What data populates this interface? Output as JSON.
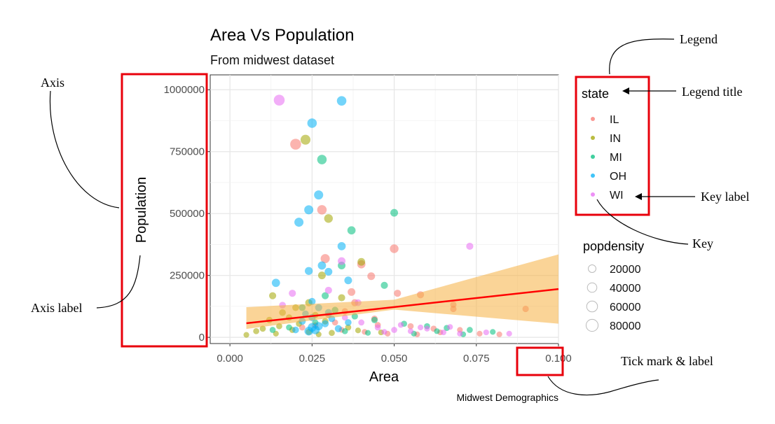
{
  "chart_data": {
    "type": "scatter",
    "title": "Area Vs Population",
    "subtitle": "From midwest dataset",
    "xlabel": "Area",
    "ylabel": "Population",
    "caption": "Midwest Demographics",
    "xlim": [
      -0.006,
      0.1
    ],
    "ylim": [
      -25000,
      1060000
    ],
    "x_ticks": [
      0.0,
      0.025,
      0.05,
      0.075,
      0.1
    ],
    "x_tick_labels": [
      "0.000",
      "0.025",
      "0.050",
      "0.075",
      "0.100"
    ],
    "y_ticks": [
      0,
      250000,
      500000,
      750000,
      1000000
    ],
    "y_tick_labels": [
      "0",
      "250000",
      "500000",
      "750000",
      "1000000"
    ],
    "grid": true,
    "legend_placement": "right",
    "legend_state": {
      "title": "state",
      "entries": [
        {
          "label": "IL",
          "color": "#F8766D"
        },
        {
          "label": "IN",
          "color": "#A3A500"
        },
        {
          "label": "MI",
          "color": "#00BF7D"
        },
        {
          "label": "OH",
          "color": "#00B0F6"
        },
        {
          "label": "WI",
          "color": "#E76BF3"
        }
      ]
    },
    "legend_popdensity": {
      "title": "popdensity",
      "entries": [
        {
          "label": "20000",
          "value": 20000
        },
        {
          "label": "40000",
          "value": 40000
        },
        {
          "label": "60000",
          "value": 60000
        },
        {
          "label": "80000",
          "value": 80000
        }
      ]
    },
    "smooth": {
      "color": "#FF0000",
      "band_color": "#F5B041",
      "line": [
        [
          0.005,
          57000
        ],
        [
          0.1,
          195000
        ]
      ],
      "band_upper": [
        [
          0.005,
          122000
        ],
        [
          0.05,
          152000
        ],
        [
          0.1,
          335000
        ]
      ],
      "band_lower": [
        [
          0.005,
          34000
        ],
        [
          0.05,
          112000
        ],
        [
          0.1,
          55000
        ]
      ]
    },
    "series": [
      {
        "name": "IL",
        "color": "#F8766D",
        "points": [
          {
            "x": 0.02,
            "y": 780000,
            "popdensity": 60000
          },
          {
            "x": 0.028,
            "y": 515000,
            "popdensity": 40000
          },
          {
            "x": 0.029,
            "y": 318000,
            "popdensity": 35000
          },
          {
            "x": 0.05,
            "y": 358000,
            "popdensity": 30000
          },
          {
            "x": 0.04,
            "y": 295000,
            "popdensity": 25000
          },
          {
            "x": 0.043,
            "y": 247000,
            "popdensity": 20000
          },
          {
            "x": 0.037,
            "y": 183000,
            "popdensity": 20000
          },
          {
            "x": 0.051,
            "y": 178000,
            "popdensity": 15000
          },
          {
            "x": 0.058,
            "y": 172000,
            "popdensity": 15000
          },
          {
            "x": 0.068,
            "y": 132000,
            "popdensity": 10000
          },
          {
            "x": 0.068,
            "y": 115000,
            "popdensity": 10000
          },
          {
            "x": 0.09,
            "y": 115000,
            "popdensity": 10000
          },
          {
            "x": 0.038,
            "y": 140000,
            "popdensity": 15000
          },
          {
            "x": 0.045,
            "y": 50000,
            "popdensity": 8000
          },
          {
            "x": 0.055,
            "y": 45000,
            "popdensity": 8000
          },
          {
            "x": 0.062,
            "y": 35000,
            "popdensity": 8000
          },
          {
            "x": 0.07,
            "y": 30000,
            "popdensity": 6000
          },
          {
            "x": 0.032,
            "y": 60000,
            "popdensity": 8000
          },
          {
            "x": 0.026,
            "y": 48000,
            "popdensity": 8000
          },
          {
            "x": 0.022,
            "y": 40000,
            "popdensity": 8000
          },
          {
            "x": 0.034,
            "y": 30000,
            "popdensity": 6000
          },
          {
            "x": 0.041,
            "y": 22000,
            "popdensity": 6000
          },
          {
            "x": 0.048,
            "y": 15000,
            "popdensity": 6000
          },
          {
            "x": 0.057,
            "y": 12000,
            "popdensity": 6000
          },
          {
            "x": 0.064,
            "y": 20000,
            "popdensity": 6000
          },
          {
            "x": 0.076,
            "y": 15000,
            "popdensity": 6000
          },
          {
            "x": 0.082,
            "y": 12000,
            "popdensity": 6000
          },
          {
            "x": 0.03,
            "y": 90000,
            "popdensity": 10000
          },
          {
            "x": 0.044,
            "y": 75000,
            "popdensity": 10000
          },
          {
            "x": 0.035,
            "y": 105000,
            "popdensity": 10000
          }
        ]
      },
      {
        "name": "IN",
        "color": "#A3A500",
        "points": [
          {
            "x": 0.023,
            "y": 798000,
            "popdensity": 45000
          },
          {
            "x": 0.03,
            "y": 480000,
            "popdensity": 30000
          },
          {
            "x": 0.04,
            "y": 305000,
            "popdensity": 20000
          },
          {
            "x": 0.028,
            "y": 250000,
            "popdensity": 20000
          },
          {
            "x": 0.013,
            "y": 168000,
            "popdensity": 15000
          },
          {
            "x": 0.034,
            "y": 160000,
            "popdensity": 15000
          },
          {
            "x": 0.024,
            "y": 140000,
            "popdensity": 15000
          },
          {
            "x": 0.02,
            "y": 120000,
            "popdensity": 12000
          },
          {
            "x": 0.016,
            "y": 100000,
            "popdensity": 12000
          },
          {
            "x": 0.026,
            "y": 90000,
            "popdensity": 10000
          },
          {
            "x": 0.018,
            "y": 80000,
            "popdensity": 10000
          },
          {
            "x": 0.012,
            "y": 70000,
            "popdensity": 10000
          },
          {
            "x": 0.029,
            "y": 65000,
            "popdensity": 10000
          },
          {
            "x": 0.021,
            "y": 55000,
            "popdensity": 8000
          },
          {
            "x": 0.015,
            "y": 45000,
            "popdensity": 8000
          },
          {
            "x": 0.01,
            "y": 35000,
            "popdensity": 8000
          },
          {
            "x": 0.008,
            "y": 25000,
            "popdensity": 8000
          },
          {
            "x": 0.019,
            "y": 30000,
            "popdensity": 8000
          },
          {
            "x": 0.024,
            "y": 22000,
            "popdensity": 8000
          },
          {
            "x": 0.031,
            "y": 18000,
            "popdensity": 8000
          },
          {
            "x": 0.036,
            "y": 40000,
            "popdensity": 8000
          },
          {
            "x": 0.005,
            "y": 10000,
            "popdensity": 6000
          },
          {
            "x": 0.014,
            "y": 15000,
            "popdensity": 6000
          },
          {
            "x": 0.027,
            "y": 12000,
            "popdensity": 6000
          },
          {
            "x": 0.039,
            "y": 28000,
            "popdensity": 6000
          },
          {
            "x": 0.046,
            "y": 20000,
            "popdensity": 6000
          }
        ]
      },
      {
        "name": "MI",
        "color": "#00BF7D",
        "points": [
          {
            "x": 0.028,
            "y": 718000,
            "popdensity": 40000
          },
          {
            "x": 0.05,
            "y": 503000,
            "popdensity": 20000
          },
          {
            "x": 0.037,
            "y": 432000,
            "popdensity": 25000
          },
          {
            "x": 0.034,
            "y": 290000,
            "popdensity": 20000
          },
          {
            "x": 0.047,
            "y": 210000,
            "popdensity": 15000
          },
          {
            "x": 0.029,
            "y": 168000,
            "popdensity": 15000
          },
          {
            "x": 0.022,
            "y": 120000,
            "popdensity": 12000
          },
          {
            "x": 0.032,
            "y": 110000,
            "popdensity": 12000
          },
          {
            "x": 0.038,
            "y": 85000,
            "popdensity": 10000
          },
          {
            "x": 0.044,
            "y": 70000,
            "popdensity": 10000
          },
          {
            "x": 0.053,
            "y": 55000,
            "popdensity": 8000
          },
          {
            "x": 0.06,
            "y": 45000,
            "popdensity": 8000
          },
          {
            "x": 0.066,
            "y": 38000,
            "popdensity": 8000
          },
          {
            "x": 0.073,
            "y": 30000,
            "popdensity": 8000
          },
          {
            "x": 0.08,
            "y": 22000,
            "popdensity": 6000
          },
          {
            "x": 0.026,
            "y": 60000,
            "popdensity": 8000
          },
          {
            "x": 0.018,
            "y": 40000,
            "popdensity": 8000
          },
          {
            "x": 0.013,
            "y": 30000,
            "popdensity": 8000
          },
          {
            "x": 0.035,
            "y": 25000,
            "popdensity": 8000
          },
          {
            "x": 0.042,
            "y": 18000,
            "popdensity": 6000
          },
          {
            "x": 0.056,
            "y": 15000,
            "popdensity": 6000
          },
          {
            "x": 0.063,
            "y": 25000,
            "popdensity": 6000
          },
          {
            "x": 0.071,
            "y": 12000,
            "popdensity": 6000
          }
        ]
      },
      {
        "name": "OH",
        "color": "#00B0F6",
        "points": [
          {
            "x": 0.034,
            "y": 955000,
            "popdensity": 40000
          },
          {
            "x": 0.025,
            "y": 865000,
            "popdensity": 40000
          },
          {
            "x": 0.027,
            "y": 575000,
            "popdensity": 35000
          },
          {
            "x": 0.024,
            "y": 515000,
            "popdensity": 35000
          },
          {
            "x": 0.021,
            "y": 465000,
            "popdensity": 35000
          },
          {
            "x": 0.034,
            "y": 368000,
            "popdensity": 25000
          },
          {
            "x": 0.028,
            "y": 290000,
            "popdensity": 25000
          },
          {
            "x": 0.024,
            "y": 268000,
            "popdensity": 22000
          },
          {
            "x": 0.014,
            "y": 220000,
            "popdensity": 25000
          },
          {
            "x": 0.036,
            "y": 230000,
            "popdensity": 20000
          },
          {
            "x": 0.03,
            "y": 265000,
            "popdensity": 20000
          },
          {
            "x": 0.025,
            "y": 145000,
            "popdensity": 15000
          },
          {
            "x": 0.027,
            "y": 120000,
            "popdensity": 15000
          },
          {
            "x": 0.03,
            "y": 100000,
            "popdensity": 15000
          },
          {
            "x": 0.025,
            "y": 80000,
            "popdensity": 15000
          },
          {
            "x": 0.022,
            "y": 65000,
            "popdensity": 15000
          },
          {
            "x": 0.029,
            "y": 55000,
            "popdensity": 15000
          },
          {
            "x": 0.025,
            "y": 40000,
            "popdensity": 30000
          },
          {
            "x": 0.026,
            "y": 30000,
            "popdensity": 30000
          },
          {
            "x": 0.024,
            "y": 25000,
            "popdensity": 30000
          },
          {
            "x": 0.027,
            "y": 45000,
            "popdensity": 25000
          },
          {
            "x": 0.033,
            "y": 35000,
            "popdensity": 15000
          },
          {
            "x": 0.02,
            "y": 30000,
            "popdensity": 12000
          },
          {
            "x": 0.036,
            "y": 60000,
            "popdensity": 12000
          },
          {
            "x": 0.031,
            "y": 75000,
            "popdensity": 12000
          },
          {
            "x": 0.023,
            "y": 95000,
            "popdensity": 12000
          }
        ]
      },
      {
        "name": "WI",
        "color": "#E76BF3",
        "points": [
          {
            "x": 0.015,
            "y": 958000,
            "popdensity": 60000
          },
          {
            "x": 0.073,
            "y": 368000,
            "popdensity": 15000
          },
          {
            "x": 0.034,
            "y": 308000,
            "popdensity": 20000
          },
          {
            "x": 0.019,
            "y": 178000,
            "popdensity": 15000
          },
          {
            "x": 0.016,
            "y": 130000,
            "popdensity": 12000
          },
          {
            "x": 0.03,
            "y": 190000,
            "popdensity": 15000
          },
          {
            "x": 0.039,
            "y": 140000,
            "popdensity": 12000
          },
          {
            "x": 0.045,
            "y": 40000,
            "popdensity": 8000
          },
          {
            "x": 0.05,
            "y": 30000,
            "popdensity": 8000
          },
          {
            "x": 0.055,
            "y": 25000,
            "popdensity": 6000
          },
          {
            "x": 0.06,
            "y": 35000,
            "popdensity": 6000
          },
          {
            "x": 0.065,
            "y": 20000,
            "popdensity": 6000
          },
          {
            "x": 0.07,
            "y": 15000,
            "popdensity": 6000
          },
          {
            "x": 0.078,
            "y": 20000,
            "popdensity": 6000
          },
          {
            "x": 0.085,
            "y": 15000,
            "popdensity": 6000
          },
          {
            "x": 0.04,
            "y": 60000,
            "popdensity": 8000
          },
          {
            "x": 0.035,
            "y": 80000,
            "popdensity": 8000
          },
          {
            "x": 0.047,
            "y": 22000,
            "popdensity": 6000
          },
          {
            "x": 0.052,
            "y": 50000,
            "popdensity": 6000
          },
          {
            "x": 0.058,
            "y": 40000,
            "popdensity": 6000
          },
          {
            "x": 0.067,
            "y": 42000,
            "popdensity": 6000
          }
        ]
      }
    ]
  },
  "annotations": {
    "axis": "Axis",
    "axis_label": "Axis label",
    "legend": "Legend",
    "legend_title": "Legend title",
    "key_label": "Key label",
    "key": "Key",
    "tick": "Tick mark & label",
    "highlight_color": "#E8000B"
  }
}
